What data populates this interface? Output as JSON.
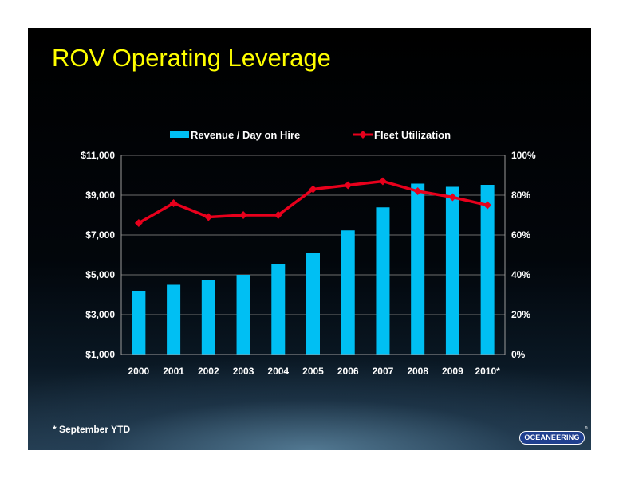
{
  "slide": {
    "title": "ROV Operating Leverage",
    "footnote": "* September YTD",
    "logo_text": "OCEANEERING",
    "logo_mark": "®"
  },
  "colors": {
    "bar": "#00bff3",
    "line": "#e8001c",
    "title": "#ffff00"
  },
  "chart_data": {
    "type": "bar",
    "categories": [
      "2000",
      "2001",
      "2002",
      "2003",
      "2004",
      "2005",
      "2006",
      "2007",
      "2008",
      "2009",
      "2010*"
    ],
    "series": [
      {
        "name": "Revenue / Day on Hire",
        "type": "bar",
        "axis": "left",
        "values": [
          4200,
          4500,
          4750,
          5000,
          5550,
          6080,
          7230,
          8390,
          9580,
          9420,
          9520
        ]
      },
      {
        "name": "Fleet Utilization",
        "type": "line",
        "axis": "right",
        "values": [
          66,
          76,
          69,
          70,
          70,
          83,
          85,
          87,
          82,
          79,
          75
        ]
      }
    ],
    "y_left": {
      "min": 1000,
      "max": 11000,
      "ticks": [
        "$1,000",
        "$3,000",
        "$5,000",
        "$7,000",
        "$9,000",
        "$11,000"
      ]
    },
    "y_right": {
      "min": 0,
      "max": 100,
      "ticks": [
        "0%",
        "20%",
        "40%",
        "60%",
        "80%",
        "100%"
      ]
    },
    "legend_position": "top",
    "grid": true
  }
}
